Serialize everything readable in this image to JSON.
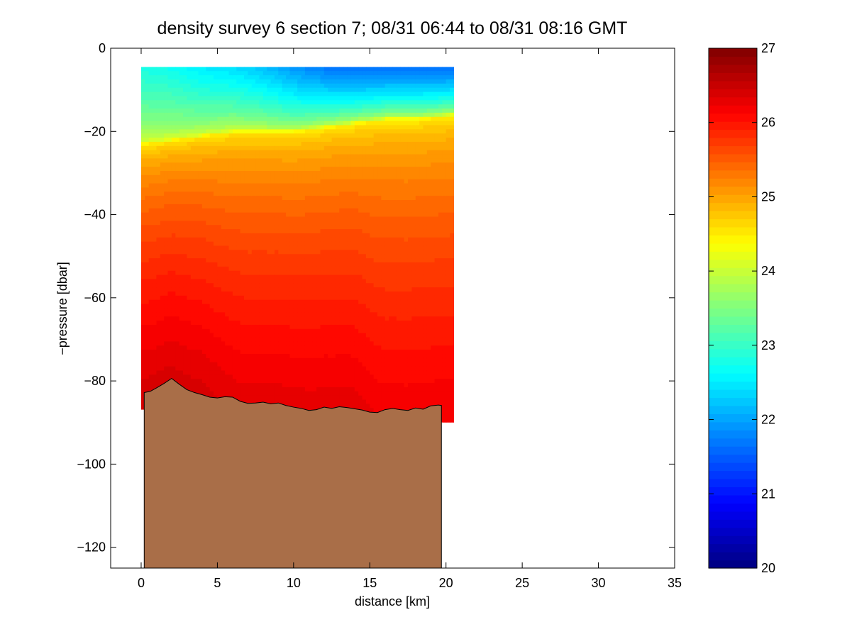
{
  "chart_data": {
    "type": "heatmap",
    "title": "density survey 6 section 7; 08/31 06:44 to 08/31 08:16 GMT",
    "xlabel": "distance [km]",
    "ylabel": "−pressure [dbar]",
    "xlim": [
      -2,
      35
    ],
    "ylim": [
      -125,
      0
    ],
    "x_ticks": [
      0,
      5,
      10,
      15,
      20,
      25,
      30,
      35
    ],
    "x_tick_labels": [
      "0",
      "5",
      "10",
      "15",
      "20",
      "25",
      "30",
      "35"
    ],
    "y_ticks": [
      0,
      -20,
      -40,
      -60,
      -80,
      -100,
      -120
    ],
    "y_tick_labels": [
      "0",
      "−20",
      "−40",
      "−60",
      "−80",
      "−100",
      "−120"
    ],
    "colorbar": {
      "range": [
        20,
        27
      ],
      "ticks": [
        20,
        21,
        22,
        23,
        24,
        25,
        26,
        27
      ],
      "tick_labels": [
        "20",
        "21",
        "22",
        "23",
        "24",
        "25",
        "26",
        "27"
      ],
      "levels": 64,
      "colormap": "jet"
    },
    "grid": false,
    "data_extent": {
      "x": [
        0,
        20.5
      ],
      "top_pressure": -4.5
    },
    "profiles": [
      {
        "x": 0,
        "surface": 22.8,
        "pycnocline_depth": -23,
        "bottom_value": 26.4
      },
      {
        "x": 2,
        "surface": 22.7,
        "pycnocline_depth": -22,
        "bottom_value": 26.4
      },
      {
        "x": 4,
        "surface": 22.5,
        "pycnocline_depth": -21,
        "bottom_value": 26.4
      },
      {
        "x": 6,
        "surface": 22.4,
        "pycnocline_depth": -20,
        "bottom_value": 26.3
      },
      {
        "x": 8,
        "surface": 22.2,
        "pycnocline_depth": -20,
        "bottom_value": 26.3
      },
      {
        "x": 10,
        "surface": 21.9,
        "pycnocline_depth": -20,
        "bottom_value": 26.3
      },
      {
        "x": 12,
        "surface": 21.7,
        "pycnocline_depth": -19,
        "bottom_value": 26.3
      },
      {
        "x": 14,
        "surface": 21.6,
        "pycnocline_depth": -18,
        "bottom_value": 26.3
      },
      {
        "x": 16,
        "surface": 21.6,
        "pycnocline_depth": -17,
        "bottom_value": 26.2
      },
      {
        "x": 18,
        "surface": 21.6,
        "pycnocline_depth": -17,
        "bottom_value": 26.2
      },
      {
        "x": 20.5,
        "surface": 21.6,
        "pycnocline_depth": -16,
        "bottom_value": 26.2
      }
    ],
    "bathymetry": {
      "fill_color": "#a96e48",
      "x": [
        0.2,
        0.6,
        1.0,
        1.5,
        2.0,
        2.5,
        3.0,
        3.5,
        4.0,
        4.5,
        5.0,
        5.5,
        6.0,
        6.5,
        7.0,
        7.5,
        8.0,
        8.5,
        9.0,
        9.5,
        10.0,
        10.5,
        11.0,
        11.5,
        12.0,
        12.5,
        13.0,
        13.5,
        14.0,
        14.5,
        15.0,
        15.5,
        16.0,
        16.5,
        17.0,
        17.5,
        18.0,
        18.5,
        19.0,
        19.5,
        19.7
      ],
      "depth": [
        -82.8,
        -82.5,
        -81.7,
        -80.6,
        -79.4,
        -80.8,
        -82.1,
        -82.8,
        -83.3,
        -83.9,
        -84.1,
        -83.8,
        -83.9,
        -84.9,
        -85.4,
        -85.3,
        -85.1,
        -85.5,
        -85.3,
        -85.9,
        -86.3,
        -86.6,
        -87.1,
        -86.9,
        -86.3,
        -86.6,
        -86.2,
        -86.4,
        -86.7,
        -87.0,
        -87.5,
        -87.6,
        -86.9,
        -86.6,
        -86.9,
        -87.1,
        -86.5,
        -86.8,
        -86.0,
        -85.8,
        -85.9
      ]
    }
  }
}
